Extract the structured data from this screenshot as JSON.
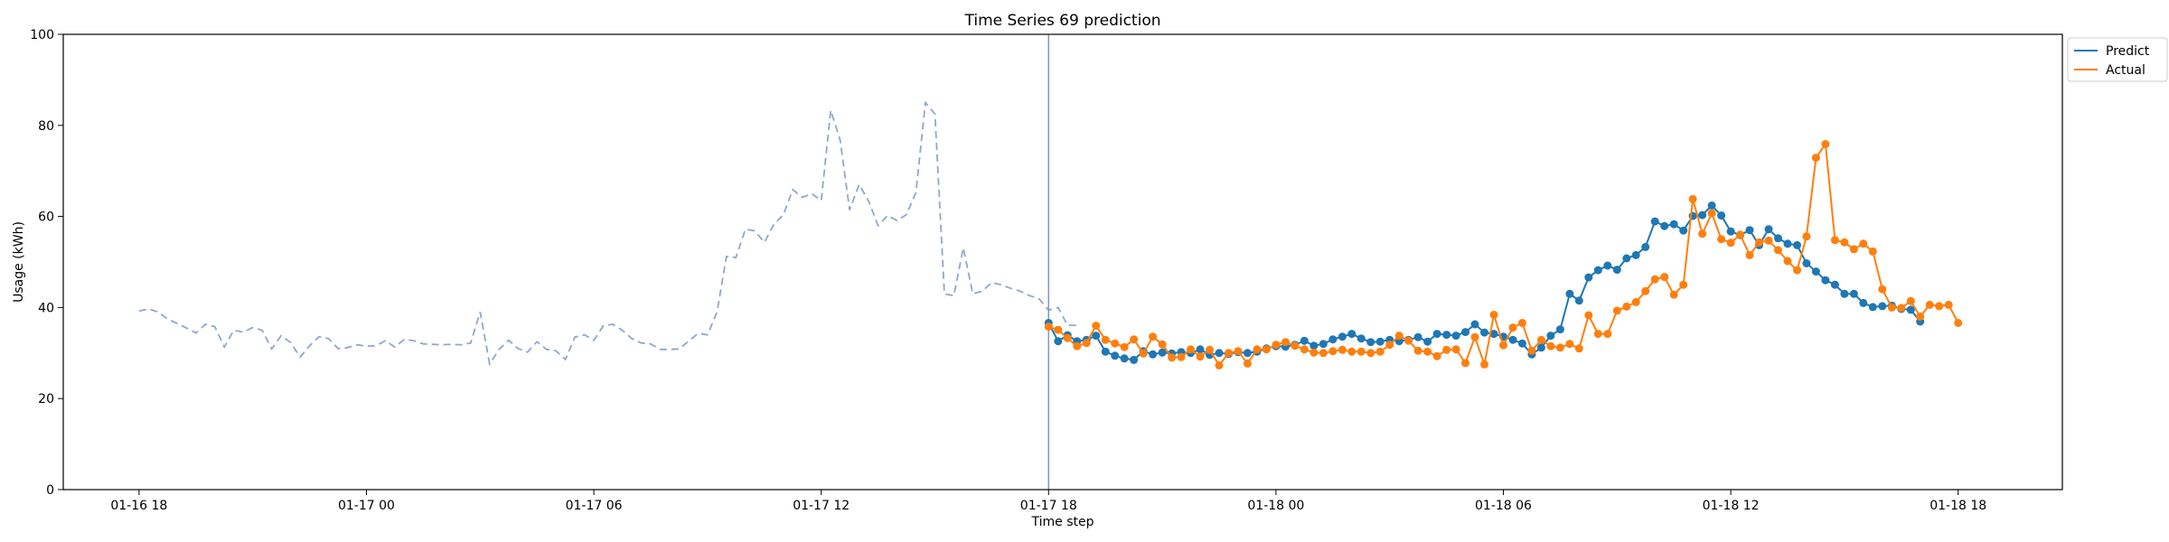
{
  "chart_data": {
    "type": "line",
    "title": "Time Series 69 prediction",
    "xlabel": "Time step",
    "ylabel": "Usage (kWh)",
    "ylim": [
      0,
      100
    ],
    "yticks": [
      0,
      20,
      40,
      60,
      80,
      100
    ],
    "x_unit": "hours",
    "xlim": [
      -2.0,
      50.75
    ],
    "xticks": [
      {
        "x": 0,
        "label": "01-16 18"
      },
      {
        "x": 6,
        "label": "01-17 00"
      },
      {
        "x": 12,
        "label": "01-17 06"
      },
      {
        "x": 18,
        "label": "01-17 12"
      },
      {
        "x": 24,
        "label": "01-17 18"
      },
      {
        "x": 30,
        "label": "01-18 00"
      },
      {
        "x": 36,
        "label": "01-18 06"
      },
      {
        "x": 42,
        "label": "01-18 12"
      },
      {
        "x": 48,
        "label": "01-18 18"
      }
    ],
    "forecast_start_x": 24.0,
    "history": {
      "x_start": 0.0,
      "step": 0.25,
      "values": [
        39.2,
        39.7,
        39.0,
        37.5,
        36.5,
        35.5,
        34.4,
        36.3,
        35.8,
        31.3,
        35.0,
        34.6,
        35.6,
        35.0,
        30.9,
        33.8,
        32.3,
        29.1,
        31.6,
        33.6,
        33.2,
        31.0,
        31.2,
        31.8,
        31.5,
        31.6,
        32.7,
        31.3,
        33.0,
        32.7,
        32.0,
        31.9,
        31.8,
        31.9,
        31.8,
        32.2,
        39.0,
        27.6,
        30.8,
        32.8,
        31.0,
        30.2,
        32.5,
        30.8,
        30.5,
        28.6,
        33.5,
        34.0,
        32.8,
        36.0,
        36.3,
        35.0,
        33.2,
        32.2,
        32.0,
        30.8,
        30.8,
        30.9,
        32.6,
        34.3,
        34.0,
        39.0,
        51.2,
        51.0,
        57.2,
        56.8,
        54.3,
        58.3,
        60.3,
        65.9,
        64.2,
        65.0,
        63.5,
        83.3,
        76.8,
        61.4,
        67.0,
        63.4,
        58.0,
        60.2,
        59.1,
        60.4,
        65.3,
        85.0,
        82.5,
        43.0,
        42.6,
        53.1,
        43.0,
        43.6,
        45.5,
        45.0,
        44.2,
        43.6,
        42.6,
        41.9,
        39.4,
        40.0,
        36.1,
        36.1
      ]
    },
    "series": [
      {
        "name": "Predict",
        "color": "#1f77b4",
        "x_start": 24.0,
        "step": 0.25,
        "values": [
          36.6,
          32.6,
          33.9,
          32.6,
          32.9,
          33.8,
          30.3,
          29.4,
          28.8,
          28.5,
          30.4,
          29.7,
          30.1,
          29.9,
          30.2,
          30.0,
          30.8,
          29.6,
          30.0,
          29.8,
          30.2,
          30.0,
          30.3,
          31.0,
          31.5,
          31.4,
          31.8,
          32.7,
          31.6,
          32.0,
          33.0,
          33.6,
          34.2,
          33.2,
          32.4,
          32.5,
          32.9,
          32.6,
          32.9,
          33.5,
          32.5,
          34.2,
          34.0,
          33.8,
          34.6,
          36.3,
          34.5,
          34.2,
          33.6,
          32.9,
          32.1,
          29.7,
          31.2,
          33.8,
          35.2,
          43.0,
          41.5,
          46.6,
          48.2,
          49.2,
          48.3,
          50.8,
          51.5,
          53.3,
          58.9,
          57.9,
          58.3,
          56.9,
          60.1,
          60.3,
          62.4,
          60.2,
          56.7,
          55.9,
          57.0,
          53.7,
          57.2,
          55.2,
          54.0,
          53.7,
          49.7,
          47.9,
          46.0,
          45.0,
          43.0,
          43.0,
          41.0,
          40.1,
          40.3,
          40.4,
          39.7,
          39.5,
          36.9
        ]
      },
      {
        "name": "Actual",
        "color": "#ff7f0e",
        "x_start": 24.0,
        "step": 0.25,
        "values": [
          35.8,
          35.1,
          33.3,
          31.5,
          32.2,
          36.0,
          32.9,
          32.1,
          31.3,
          33.0,
          29.9,
          33.6,
          31.9,
          29.0,
          29.1,
          30.8,
          29.2,
          30.7,
          27.3,
          30.0,
          30.4,
          27.7,
          30.8,
          30.8,
          31.8,
          32.4,
          31.6,
          30.8,
          30.1,
          30.0,
          30.4,
          30.7,
          30.3,
          30.3,
          30.0,
          30.3,
          31.8,
          33.8,
          32.7,
          30.5,
          30.3,
          29.3,
          30.7,
          30.8,
          27.8,
          33.5,
          27.5,
          38.4,
          31.7,
          35.6,
          36.6,
          30.5,
          32.9,
          31.5,
          31.2,
          32.0,
          31.0,
          38.3,
          34.2,
          34.2,
          39.3,
          40.2,
          41.2,
          43.6,
          46.2,
          46.7,
          42.8,
          45.0,
          63.8,
          56.2,
          60.7,
          55.0,
          54.2,
          56.0,
          51.5,
          54.3,
          54.7,
          52.6,
          50.2,
          48.2,
          55.6,
          72.9,
          75.9,
          54.8,
          54.3,
          52.8,
          54.0,
          52.3,
          44.0,
          40.0,
          39.9,
          41.4,
          38.0,
          40.6,
          40.3,
          40.6,
          36.6
        ]
      }
    ],
    "legend": {
      "location": "top-right-outside",
      "entries": [
        "Predict",
        "Actual"
      ]
    },
    "grid": false
  }
}
